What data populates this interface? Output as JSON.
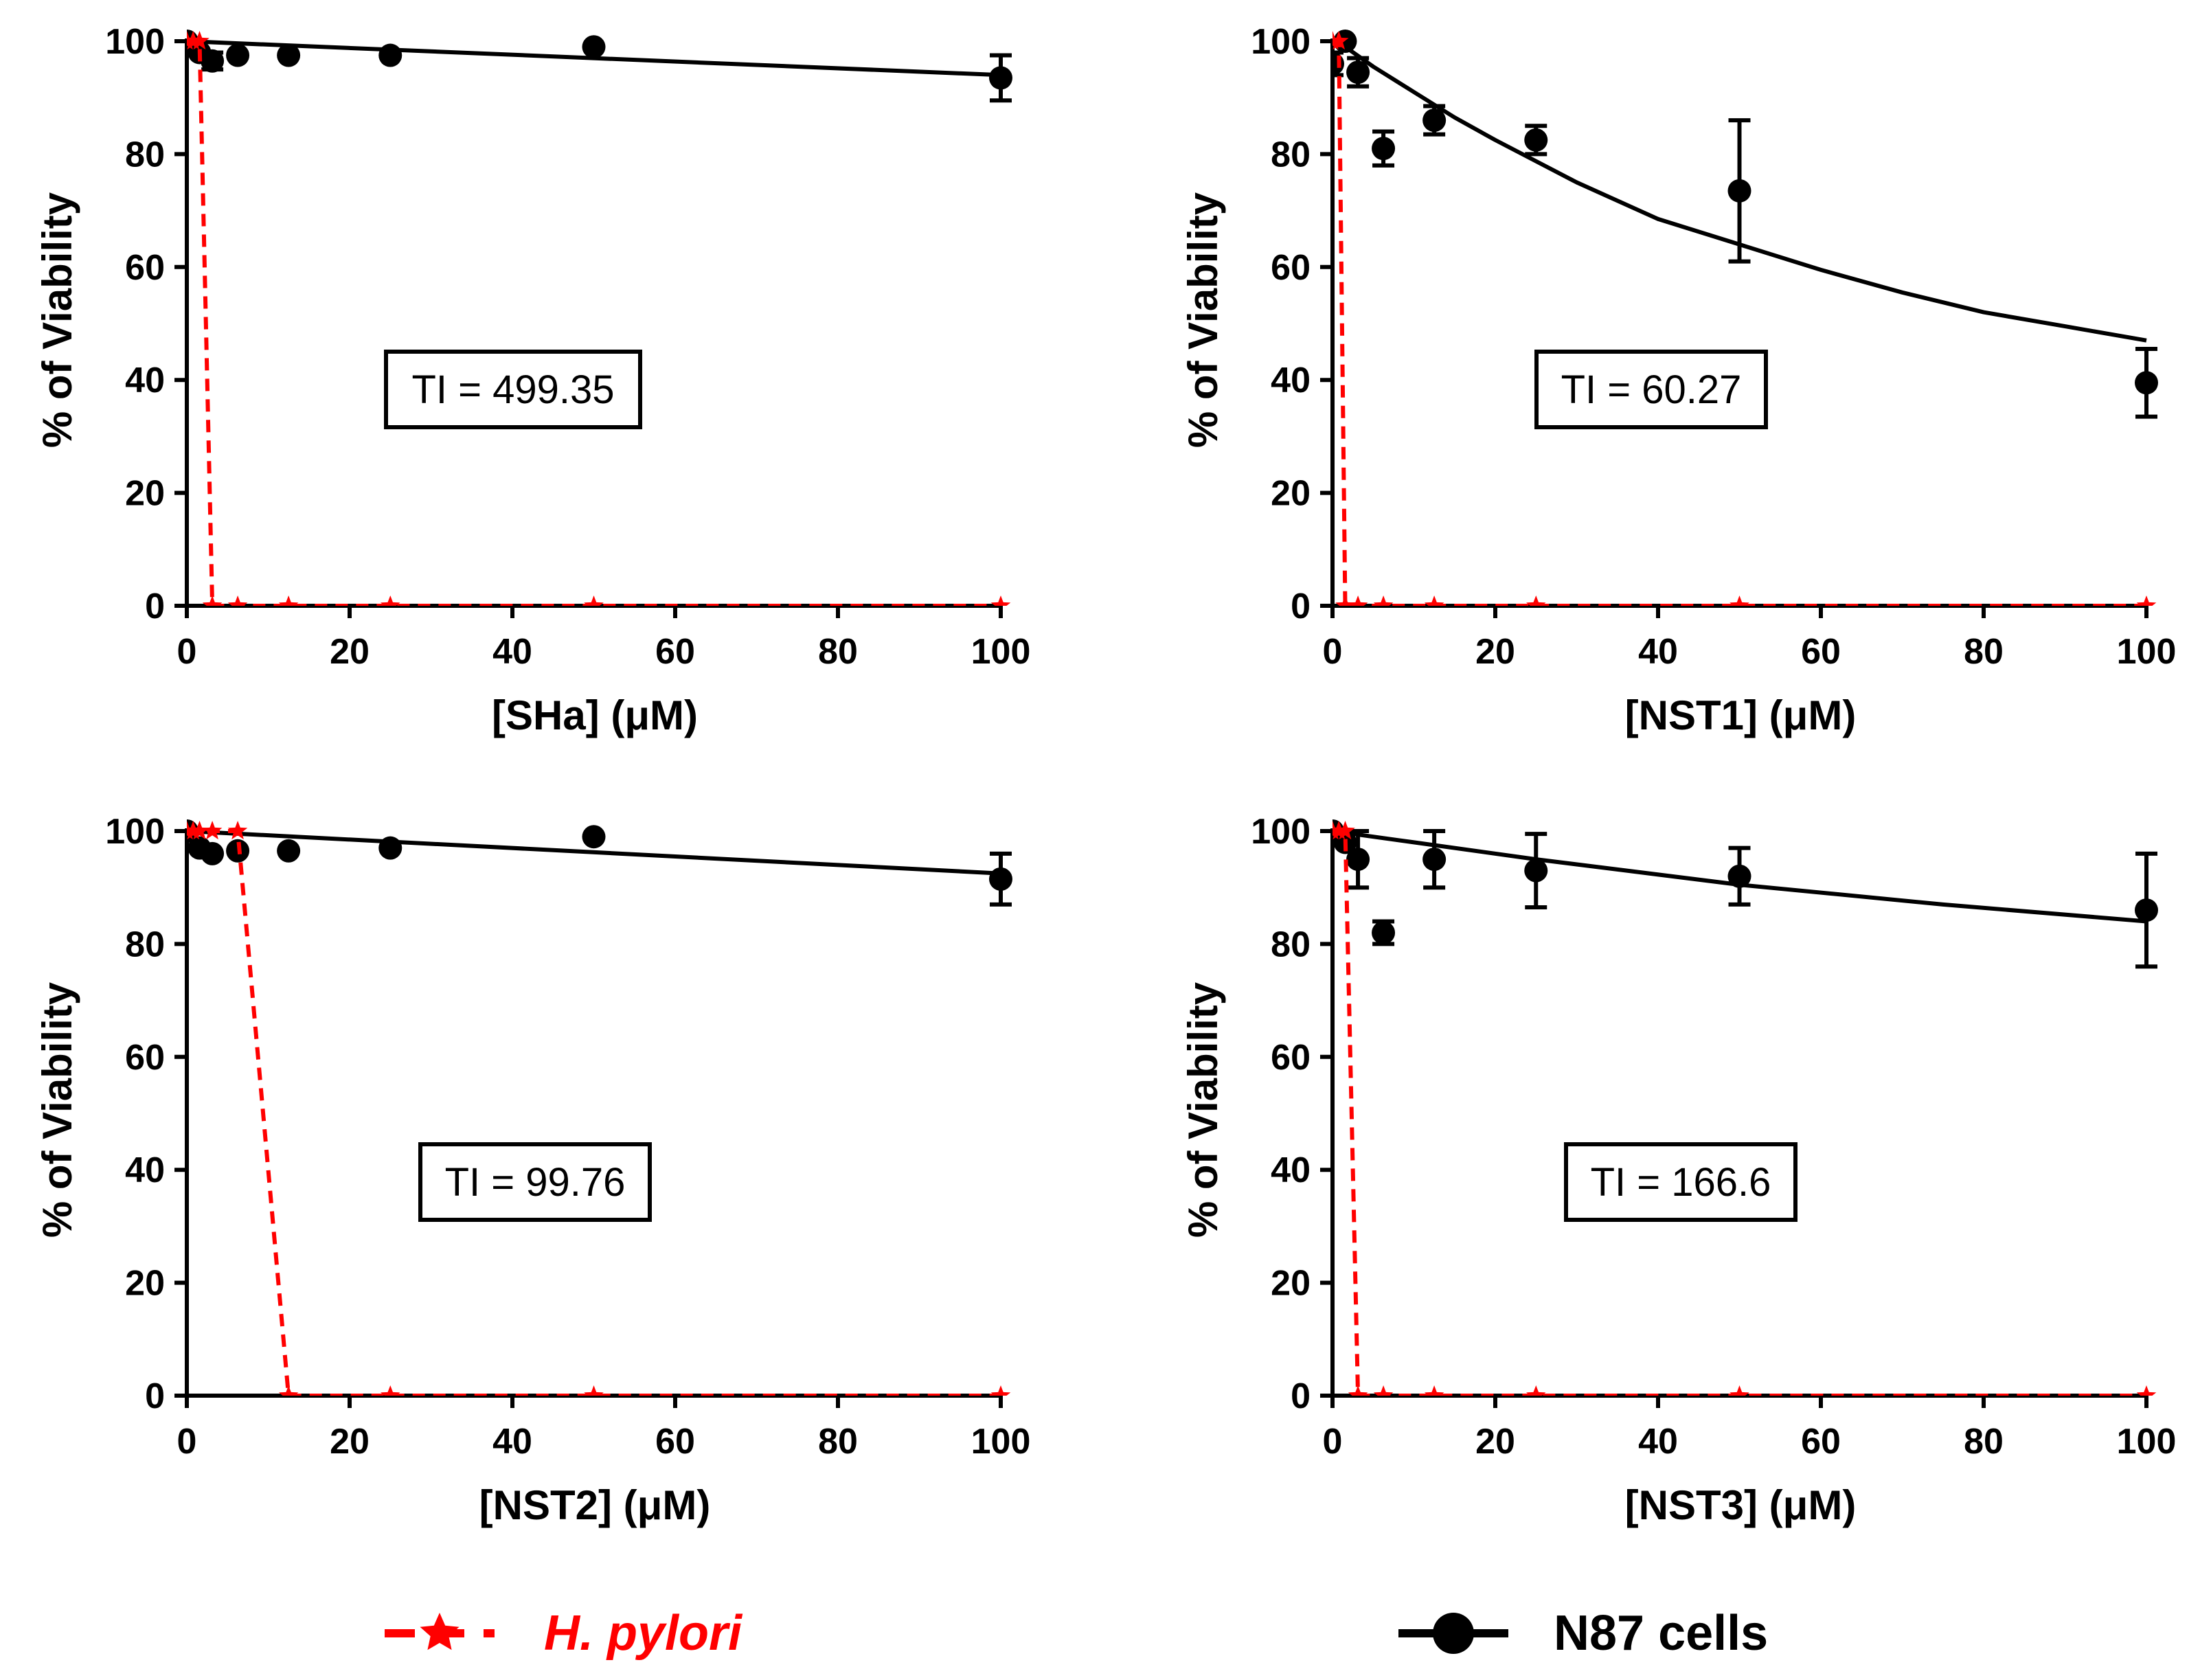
{
  "colors": {
    "hpylori": "#ff0000",
    "n87": "#000000"
  },
  "legend": [
    {
      "label": "H. pylori",
      "color": "#ff0000",
      "marker": "star",
      "style": "dashed"
    },
    {
      "label": "N87 cells",
      "color": "#000000",
      "marker": "circle",
      "style": "solid"
    }
  ],
  "chart_data": [
    {
      "type": "line",
      "xlabel": "[SHa] (μM)",
      "ylabel": "% of Viability",
      "xlim": [
        0,
        100
      ],
      "ylim": [
        0,
        100
      ],
      "xticks": [
        0,
        20,
        40,
        60,
        80,
        100
      ],
      "yticks": [
        0,
        20,
        40,
        60,
        80,
        100
      ],
      "annotation": "TI = 499.35",
      "series": [
        {
          "name": "H. pylori",
          "x": [
            0,
            0.78,
            1.56,
            3.13,
            6.25,
            12.5,
            25,
            50,
            100
          ],
          "y": [
            100,
            100,
            100,
            0,
            0,
            0,
            0,
            0,
            0
          ]
        },
        {
          "name": "N87 cells",
          "x": [
            0,
            1.56,
            3.13,
            6.25,
            12.5,
            25,
            50,
            100
          ],
          "y": [
            100,
            98,
            96.5,
            97.5,
            97.5,
            97.5,
            99,
            93.5
          ],
          "error": [
            0,
            0,
            1.5,
            0,
            0,
            0,
            0,
            4
          ],
          "fit": [
            [
              0,
              100
            ],
            [
              100,
              94
            ]
          ]
        }
      ]
    },
    {
      "type": "line",
      "xlabel": "[NST1] (μM)",
      "ylabel": "% of Viability",
      "xlim": [
        0,
        100
      ],
      "ylim": [
        0,
        100
      ],
      "xticks": [
        0,
        20,
        40,
        60,
        80,
        100
      ],
      "yticks": [
        0,
        20,
        40,
        60,
        80,
        100
      ],
      "annotation": "TI = 60.27",
      "series": [
        {
          "name": "H. pylori",
          "x": [
            0,
            0.78,
            1.56,
            3.13,
            6.25,
            12.5,
            25,
            50,
            100
          ],
          "y": [
            100,
            100,
            0,
            0,
            0,
            0,
            0,
            0,
            0
          ]
        },
        {
          "name": "N87 cells",
          "x": [
            0,
            1.56,
            3.13,
            6.25,
            12.5,
            25,
            50,
            100
          ],
          "y": [
            96,
            100,
            94.5,
            81,
            86,
            82.5,
            73.5,
            39.5
          ],
          "error": [
            2,
            0,
            2.5,
            3,
            2.5,
            2.5,
            12.5,
            6
          ],
          "fit": [
            [
              1.56,
              99
            ],
            [
              5,
              95.5
            ],
            [
              10,
              91
            ],
            [
              15,
              86.5
            ],
            [
              20,
              82.5
            ],
            [
              30,
              75
            ],
            [
              40,
              68.5
            ],
            [
              50,
              64
            ],
            [
              60,
              59.5
            ],
            [
              70,
              55.5
            ],
            [
              80,
              52
            ],
            [
              90,
              49.5
            ],
            [
              100,
              47
            ]
          ]
        }
      ]
    },
    {
      "type": "line",
      "xlabel": "[NST2] (μM)",
      "ylabel": "% of Viability",
      "xlim": [
        0,
        100
      ],
      "ylim": [
        0,
        100
      ],
      "xticks": [
        0,
        20,
        40,
        60,
        80,
        100
      ],
      "yticks": [
        0,
        20,
        40,
        60,
        80,
        100
      ],
      "annotation": "TI = 99.76",
      "series": [
        {
          "name": "H. pylori",
          "x": [
            0,
            0.78,
            1.56,
            3.13,
            6.25,
            12.5,
            25,
            50,
            100
          ],
          "y": [
            100,
            100,
            100,
            100,
            100,
            0,
            0,
            0,
            0
          ]
        },
        {
          "name": "N87 cells",
          "x": [
            0,
            1.56,
            3.13,
            6.25,
            12.5,
            25,
            50,
            100
          ],
          "y": [
            100,
            97,
            96,
            96.5,
            96.5,
            97,
            99,
            91.5
          ],
          "error": [
            0,
            0,
            0,
            0,
            0,
            0,
            0,
            4.5
          ],
          "fit": [
            [
              0,
              100
            ],
            [
              100,
              92.5
            ]
          ]
        }
      ]
    },
    {
      "type": "line",
      "xlabel": "[NST3] (μM)",
      "ylabel": "% of Viability",
      "xlim": [
        0,
        100
      ],
      "ylim": [
        0,
        100
      ],
      "xticks": [
        0,
        20,
        40,
        60,
        80,
        100
      ],
      "yticks": [
        0,
        20,
        40,
        60,
        80,
        100
      ],
      "annotation": "TI = 166.6",
      "series": [
        {
          "name": "H. pylori",
          "x": [
            0,
            0.78,
            1.56,
            3.13,
            6.25,
            12.5,
            25,
            50,
            100
          ],
          "y": [
            100,
            100,
            100,
            0,
            0,
            0,
            0,
            0,
            0
          ]
        },
        {
          "name": "N87 cells",
          "x": [
            0,
            1.56,
            3.13,
            6.25,
            12.5,
            25,
            50,
            100
          ],
          "y": [
            100,
            98,
            95,
            82,
            95,
            93,
            92,
            86
          ],
          "error": [
            0,
            0,
            5,
            2,
            5,
            6.5,
            5,
            10
          ],
          "fit": [
            [
              0,
              100
            ],
            [
              10,
              98
            ],
            [
              25,
              95
            ],
            [
              50,
              90.5
            ],
            [
              75,
              87
            ],
            [
              100,
              84
            ]
          ]
        }
      ]
    }
  ]
}
